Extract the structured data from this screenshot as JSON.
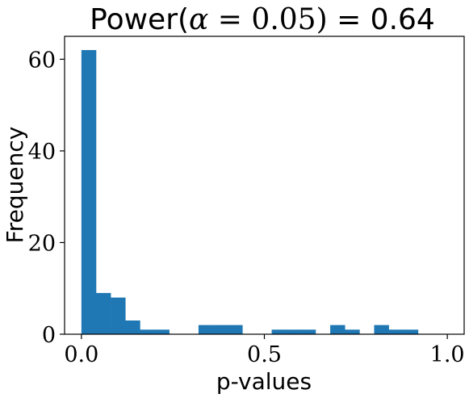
{
  "chart_data": {
    "type": "bar",
    "title": {
      "prefix": "Power(",
      "alpha_symbol": "α",
      "alpha_expr": " = 0.05)",
      "suffix": " = 0.64"
    },
    "xlabel": "p-values",
    "ylabel": "Frequency",
    "xlim": [
      -0.046,
      1.046
    ],
    "ylim": [
      0,
      65
    ],
    "xticks": [
      {
        "value": 0.0,
        "label": "0.0"
      },
      {
        "value": 0.5,
        "label": "0.5"
      },
      {
        "value": 1.0,
        "label": "1.0"
      }
    ],
    "yticks": [
      {
        "value": 0,
        "label": "0"
      },
      {
        "value": 20,
        "label": "20"
      },
      {
        "value": 40,
        "label": "40"
      },
      {
        "value": 60,
        "label": "60"
      }
    ],
    "bin_width": 0.04,
    "bins": [
      {
        "x0": 0.0,
        "count": 62
      },
      {
        "x0": 0.04,
        "count": 9
      },
      {
        "x0": 0.08,
        "count": 8
      },
      {
        "x0": 0.12,
        "count": 3
      },
      {
        "x0": 0.16,
        "count": 1
      },
      {
        "x0": 0.2,
        "count": 1
      },
      {
        "x0": 0.24,
        "count": 0
      },
      {
        "x0": 0.28,
        "count": 0
      },
      {
        "x0": 0.32,
        "count": 2
      },
      {
        "x0": 0.36,
        "count": 2
      },
      {
        "x0": 0.4,
        "count": 2
      },
      {
        "x0": 0.44,
        "count": 0
      },
      {
        "x0": 0.48,
        "count": 0
      },
      {
        "x0": 0.52,
        "count": 1
      },
      {
        "x0": 0.56,
        "count": 1
      },
      {
        "x0": 0.6,
        "count": 1
      },
      {
        "x0": 0.64,
        "count": 0
      },
      {
        "x0": 0.68,
        "count": 2
      },
      {
        "x0": 0.72,
        "count": 1
      },
      {
        "x0": 0.76,
        "count": 0
      },
      {
        "x0": 0.8,
        "count": 2
      },
      {
        "x0": 0.84,
        "count": 1
      },
      {
        "x0": 0.88,
        "count": 1
      },
      {
        "x0": 0.92,
        "count": 0
      },
      {
        "x0": 0.96,
        "count": 0
      }
    ],
    "bar_color": "#1f77b4",
    "grid": false,
    "legend": "none"
  }
}
